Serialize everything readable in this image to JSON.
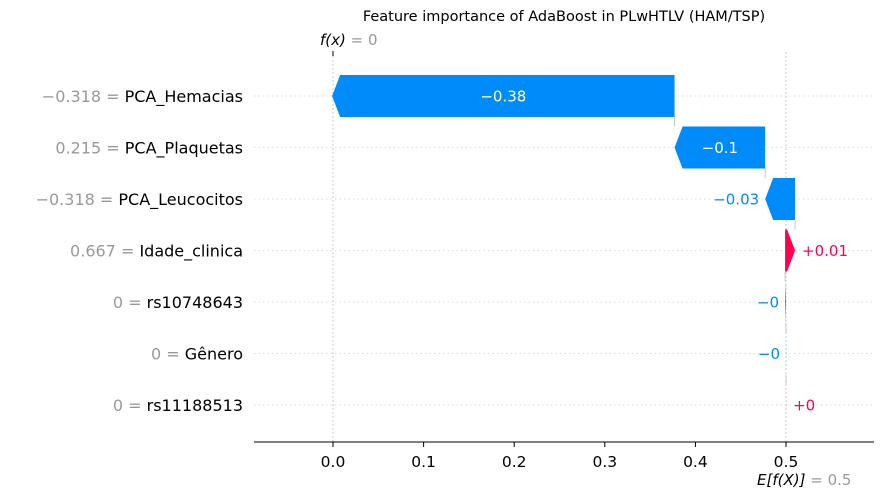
{
  "chart_data": {
    "type": "waterfall",
    "title": "Feature importance of AdaBoost in PLwHTLV (HAM/TSP)",
    "base_value": 0.5,
    "output_value": 0,
    "base_label": "E[f(X)]",
    "base_value_text": "= 0.5",
    "output_label": "f(x)",
    "output_value_text": "= 0",
    "xlim": [
      -0.085,
      0.59
    ],
    "xticks": [
      0.0,
      0.1,
      0.2,
      0.3,
      0.4,
      0.5
    ],
    "xtick_labels": [
      "0.0",
      "0.1",
      "0.2",
      "0.3",
      "0.4",
      "0.5"
    ],
    "features": [
      {
        "value_text": "−0.318 =",
        "name": "PCA_Hemacias",
        "contribution": -0.378,
        "label": "−0.38",
        "label_inside": true
      },
      {
        "value_text": "0.215 =",
        "name": "PCA_Plaquetas",
        "contribution": -0.1,
        "label": "−0.1",
        "label_inside": true
      },
      {
        "value_text": "−0.318 =",
        "name": "PCA_Leucocitos",
        "contribution": -0.033,
        "label": "−0.03",
        "label_inside": false
      },
      {
        "value_text": "0.667 =",
        "name": "Idade_clinica",
        "contribution": 0.011,
        "label": "+0.01",
        "label_inside": false
      },
      {
        "value_text": "0 =",
        "name": "rs10748643",
        "contribution": -0.001,
        "label": "−0",
        "label_inside": false
      },
      {
        "value_text": "0 =",
        "name": "Gênero",
        "contribution": -0.0001,
        "label": "−0",
        "label_inside": false
      },
      {
        "value_text": "0 =",
        "name": "rs11188513",
        "contribution": 0.0001,
        "label": "+0",
        "label_inside": false
      }
    ],
    "colors": {
      "negative": "#008bfb",
      "positive": "#ff0051"
    }
  }
}
